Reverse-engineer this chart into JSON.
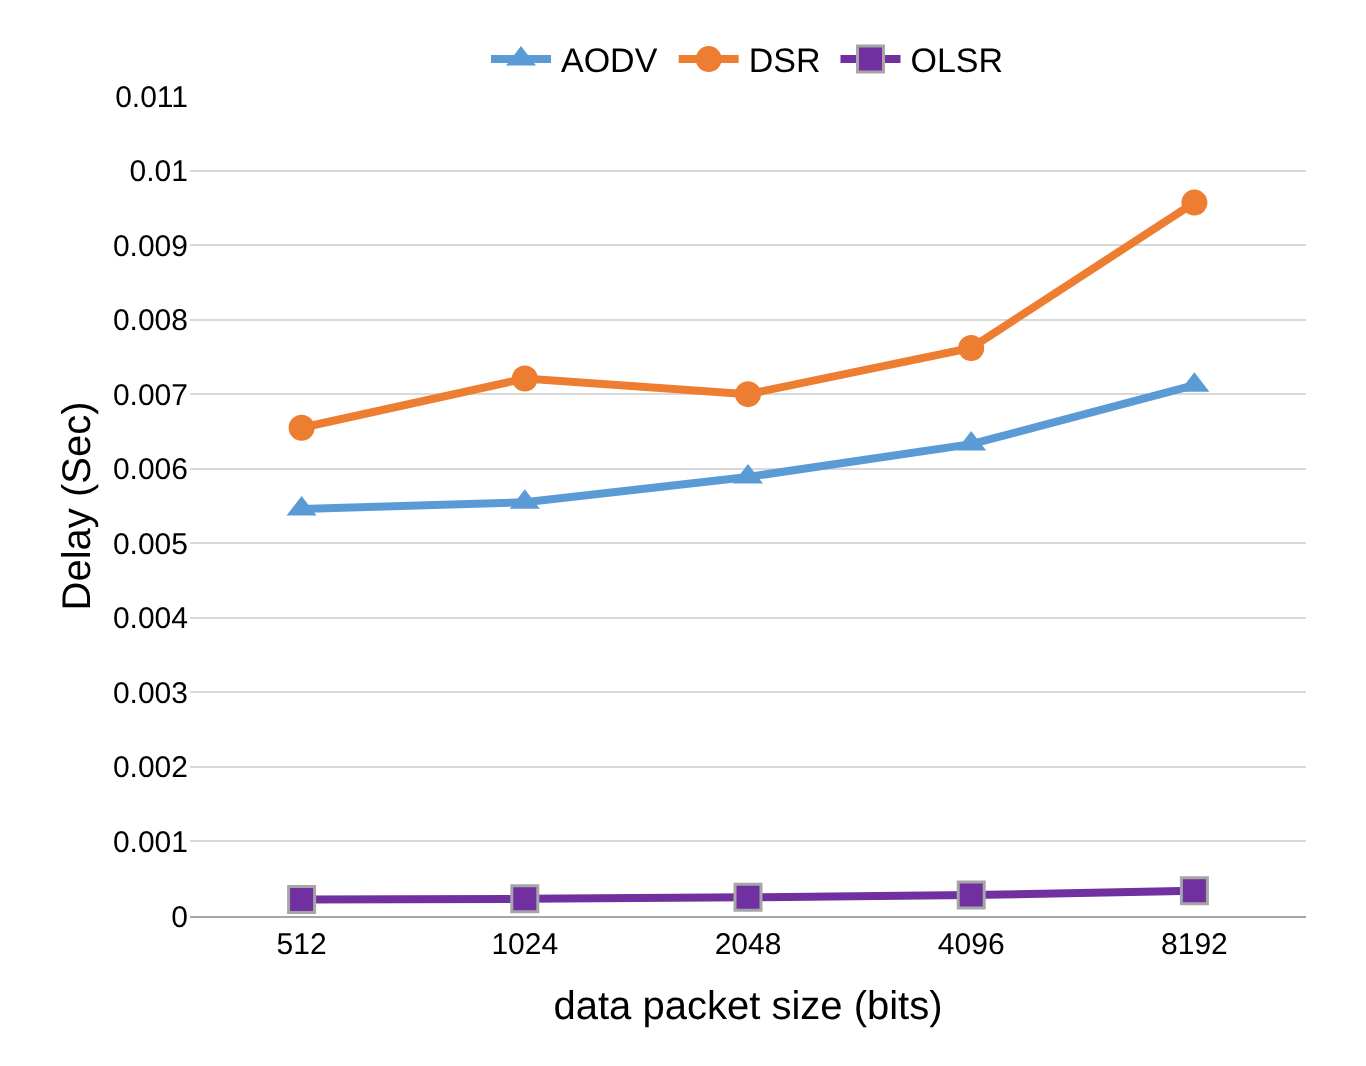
{
  "chart_data": {
    "type": "line",
    "xlabel": "data packet size (bits)",
    "ylabel": "Delay (Sec)",
    "categories": [
      "512",
      "1024",
      "2048",
      "4096",
      "8192"
    ],
    "series": [
      {
        "name": "AODV",
        "color": "#5b9bd5",
        "marker": "triangle",
        "values": [
          0.00546,
          0.00555,
          0.00589,
          0.00633,
          0.00712
        ]
      },
      {
        "name": "DSR",
        "color": "#ed7d31",
        "marker": "circle",
        "values": [
          0.00655,
          0.00721,
          0.007,
          0.00762,
          0.00957
        ]
      },
      {
        "name": "OLSR",
        "color": "#7030a0",
        "marker": "square",
        "values": [
          0.00022,
          0.00023,
          0.00025,
          0.00028,
          0.00034
        ]
      }
    ],
    "ylim": [
      0,
      0.011
    ],
    "yticks": [
      0,
      0.001,
      0.002,
      0.003,
      0.004,
      0.005,
      0.006,
      0.007,
      0.008,
      0.009,
      0.01,
      0.011
    ],
    "grid": "y",
    "legend": "top"
  }
}
